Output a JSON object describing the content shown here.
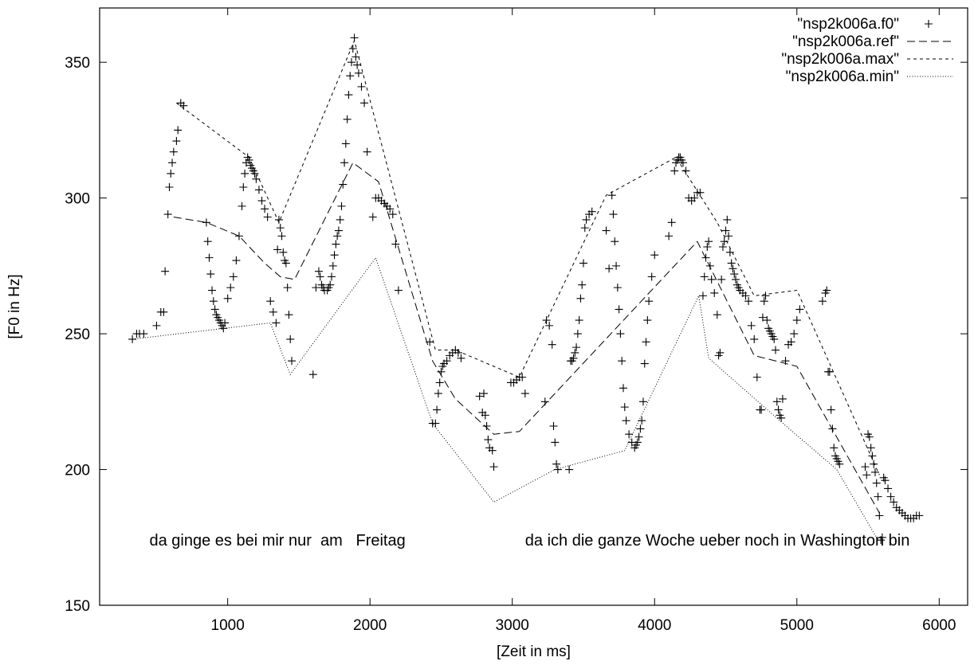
{
  "chart_data": {
    "type": "scatter",
    "title": "",
    "xlabel": "[Zeit in ms]",
    "ylabel": "[F0 in Hz]",
    "xlim": [
      100,
      6200
    ],
    "ylim": [
      150,
      370
    ],
    "x_ticks": [
      1000,
      2000,
      3000,
      4000,
      5000,
      6000
    ],
    "y_ticks": [
      150,
      200,
      250,
      300,
      350
    ],
    "grid": false,
    "legend_placement": "top-right",
    "annotations": [
      {
        "text": "da ginge es bei mir nur  am   Freitag",
        "x": 450,
        "y": 174
      },
      {
        "text": "da ich die ganze Woche ueber noch in Washington bin",
        "x": 3090,
        "y": 174
      }
    ],
    "series": [
      {
        "name": "\"nsp2k006a.f0\"",
        "style": "points",
        "x": [
          330,
          360,
          380,
          410,
          500,
          530,
          550,
          560,
          580,
          590,
          600,
          610,
          620,
          640,
          650,
          670,
          690,
          850,
          860,
          870,
          880,
          890,
          900,
          910,
          920,
          930,
          940,
          950,
          960,
          970,
          980,
          1000,
          1020,
          1040,
          1060,
          1080,
          1100,
          1110,
          1120,
          1130,
          1140,
          1150,
          1160,
          1170,
          1180,
          1190,
          1200,
          1220,
          1240,
          1260,
          1280,
          1300,
          1320,
          1340,
          1350,
          1360,
          1370,
          1380,
          1390,
          1400,
          1410,
          1420,
          1430,
          1440,
          1450,
          1600,
          1620,
          1640,
          1650,
          1660,
          1670,
          1680,
          1700,
          1710,
          1720,
          1730,
          1740,
          1750,
          1760,
          1770,
          1780,
          1790,
          1800,
          1810,
          1820,
          1830,
          1840,
          1850,
          1860,
          1870,
          1880,
          1890,
          1900,
          1910,
          1920,
          1940,
          1960,
          1980,
          2020,
          2040,
          2060,
          2080,
          2100,
          2120,
          2140,
          2160,
          2180,
          2200,
          2420,
          2440,
          2460,
          2470,
          2480,
          2490,
          2500,
          2510,
          2520,
          2540,
          2560,
          2580,
          2600,
          2620,
          2640,
          2770,
          2790,
          2800,
          2810,
          2820,
          2830,
          2840,
          2860,
          2870,
          2990,
          3010,
          3030,
          3050,
          3070,
          3090,
          3230,
          3240,
          3260,
          3280,
          3290,
          3300,
          3310,
          3320,
          3400,
          3410,
          3420,
          3430,
          3440,
          3450,
          3460,
          3470,
          3480,
          3490,
          3500,
          3510,
          3520,
          3540,
          3560,
          3660,
          3680,
          3700,
          3710,
          3720,
          3730,
          3740,
          3750,
          3760,
          3770,
          3780,
          3790,
          3800,
          3820,
          3840,
          3860,
          3870,
          3880,
          3890,
          3900,
          3910,
          3920,
          3930,
          3940,
          3950,
          3960,
          3980,
          4000,
          4100,
          4120,
          4140,
          4150,
          4160,
          4170,
          4180,
          4190,
          4200,
          4220,
          4240,
          4260,
          4280,
          4300,
          4320,
          4340,
          4350,
          4360,
          4370,
          4380,
          4390,
          4400,
          4420,
          4440,
          4450,
          4460,
          4470,
          4480,
          4490,
          4500,
          4510,
          4520,
          4530,
          4540,
          4550,
          4560,
          4570,
          4580,
          4590,
          4600,
          4620,
          4640,
          4660,
          4680,
          4700,
          4720,
          4740,
          4750,
          4760,
          4770,
          4780,
          4790,
          4800,
          4810,
          4820,
          4830,
          4840,
          4850,
          4860,
          4870,
          4880,
          4890,
          4900,
          4920,
          4940,
          4960,
          4980,
          5000,
          5020,
          5180,
          5200,
          5210,
          5220,
          5230,
          5240,
          5250,
          5260,
          5270,
          5280,
          5290,
          5300,
          5480,
          5490,
          5500,
          5510,
          5520,
          5530,
          5540,
          5550,
          5560,
          5570,
          5580,
          5590,
          5600,
          5610,
          5620,
          5640,
          5660,
          5680,
          5700,
          5720,
          5740,
          5760,
          5780,
          5800,
          5820,
          5840,
          5860
        ],
        "y": [
          248,
          250,
          250,
          250,
          253,
          258,
          258,
          273,
          294,
          304,
          309,
          313,
          317,
          321,
          325,
          335,
          334,
          291,
          284,
          278,
          272,
          266,
          262,
          259,
          257,
          256,
          255,
          254,
          253,
          252,
          254,
          263,
          267,
          271,
          277,
          286,
          297,
          304,
          309,
          313,
          315,
          314,
          312,
          311,
          310,
          309,
          307,
          303,
          299,
          296,
          293,
          262,
          258,
          254,
          281,
          292,
          289,
          286,
          280,
          277,
          276,
          267,
          257,
          248,
          240,
          235,
          267,
          273,
          271,
          268,
          267,
          266,
          266,
          267,
          268,
          271,
          275,
          279,
          283,
          286,
          288,
          292,
          297,
          305,
          313,
          320,
          329,
          338,
          345,
          350,
          355,
          359,
          352,
          349,
          346,
          341,
          335,
          317,
          293,
          300,
          300,
          299,
          298,
          297,
          296,
          294,
          283,
          266,
          247,
          217,
          217,
          222,
          228,
          232,
          236,
          238,
          239,
          240,
          242,
          243,
          244,
          243,
          241,
          227,
          221,
          228,
          220,
          216,
          211,
          208,
          207,
          201,
          232,
          232,
          233,
          234,
          234,
          228,
          225,
          255,
          253,
          246,
          216,
          210,
          202,
          200,
          200,
          240,
          240,
          241,
          243,
          245,
          250,
          255,
          263,
          268,
          276,
          289,
          292,
          294,
          295,
          288,
          274,
          301,
          294,
          284,
          275,
          267,
          259,
          250,
          240,
          230,
          223,
          218,
          213,
          210,
          208,
          209,
          210,
          212,
          215,
          218,
          225,
          239,
          247,
          255,
          262,
          271,
          279,
          286,
          291,
          310,
          313,
          314,
          315,
          315,
          314,
          313,
          310,
          300,
          299,
          300,
          302,
          302,
          264,
          271,
          278,
          282,
          284,
          275,
          270,
          265,
          257,
          242,
          243,
          270,
          282,
          284,
          288,
          292,
          286,
          280,
          276,
          274,
          272,
          270,
          268,
          267,
          266,
          265,
          264,
          262,
          253,
          248,
          234,
          222,
          222,
          256,
          262,
          264,
          255,
          252,
          251,
          250,
          249,
          248,
          244,
          225,
          222,
          220,
          219,
          226,
          240,
          246,
          247,
          250,
          255,
          259,
          262,
          265,
          266,
          236,
          236,
          222,
          215,
          208,
          205,
          204,
          203,
          202,
          201,
          198,
          213,
          212,
          208,
          205,
          202,
          199,
          195,
          190,
          183,
          174,
          175,
          197,
          196,
          193,
          190,
          188,
          186,
          185,
          184,
          183,
          182,
          182,
          182,
          183,
          183
        ]
      },
      {
        "name": "\"nsp2k006a.ref\"",
        "style": "long-dash",
        "x": [
          620,
          850,
          1080,
          1260,
          1370,
          1470,
          1880,
          2060,
          2440,
          2600,
          2870,
          3050,
          3800,
          4300,
          4700,
          5000,
          5580
        ],
        "y": [
          293,
          291,
          286,
          276,
          271,
          270,
          313,
          306,
          240,
          226,
          213,
          214,
          256,
          284,
          242,
          238,
          184
        ]
      },
      {
        "name": "\"nsp2k006a.max\"",
        "style": "short-dash",
        "x": [
          640,
          1150,
          1360,
          1890,
          2460,
          2600,
          3050,
          3660,
          4150,
          4440,
          4700,
          5000,
          5580
        ],
        "y": [
          335,
          315,
          291,
          358,
          244,
          244,
          234,
          301,
          315,
          291,
          264,
          266,
          198
        ]
      },
      {
        "name": "\"nsp2k006a.min\"",
        "style": "dotted",
        "x": [
          330,
          1300,
          1440,
          2040,
          2440,
          2870,
          3300,
          3790,
          4310,
          4380,
          4880,
          5280,
          5570
        ],
        "y": [
          248,
          254,
          235,
          278,
          217,
          188,
          200,
          207,
          264,
          241,
          218,
          200,
          174
        ]
      }
    ]
  }
}
